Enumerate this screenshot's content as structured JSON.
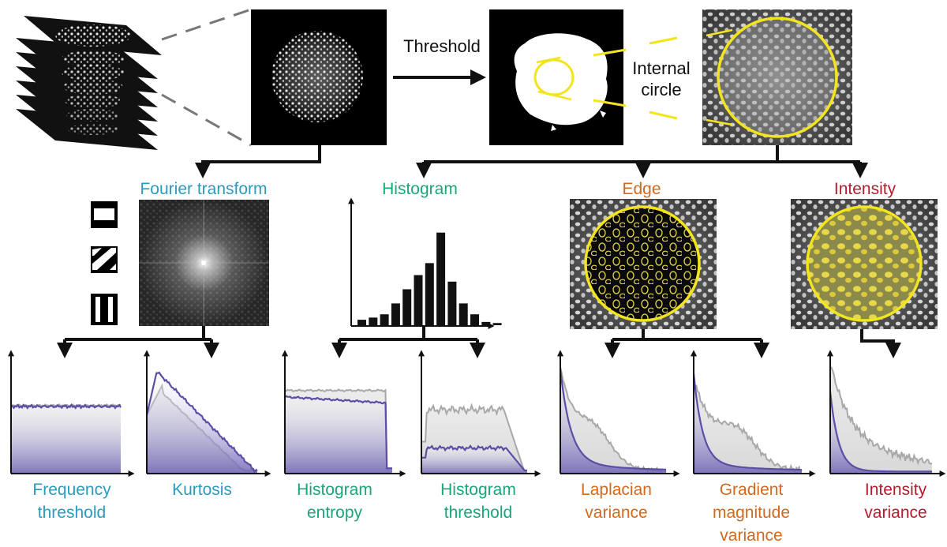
{
  "top": {
    "threshold_label": "Threshold",
    "internal_circle_label": [
      "Internal",
      "circle"
    ]
  },
  "categories": {
    "fourier": {
      "label": "Fourier transform",
      "color": "#2a9bbf"
    },
    "histogram": {
      "label": "Histogram",
      "color": "#1aa57a"
    },
    "edge": {
      "label": "Edge",
      "color": "#d2691e"
    },
    "intensity": {
      "label": "Intensity",
      "color": "#b01e2e"
    }
  },
  "metrics": [
    {
      "id": "frequency-threshold",
      "lines": [
        "Frequency",
        "threshold"
      ],
      "color": "#2a9bbf"
    },
    {
      "id": "kurtosis",
      "lines": [
        "Kurtosis"
      ],
      "color": "#2a9bbf"
    },
    {
      "id": "histogram-entropy",
      "lines": [
        "Histogram",
        "entropy"
      ],
      "color": "#1aa57a"
    },
    {
      "id": "histogram-threshold",
      "lines": [
        "Histogram",
        "threshold"
      ],
      "color": "#1aa57a"
    },
    {
      "id": "laplacian-variance",
      "lines": [
        "Laplacian",
        "variance"
      ],
      "color": "#d2691e"
    },
    {
      "id": "gradient-magnitude-variance",
      "lines": [
        "Gradient",
        "magnitude",
        "variance"
      ],
      "color": "#d2691e"
    },
    {
      "id": "intensity-variance",
      "lines": [
        "Intensity",
        "variance"
      ],
      "color": "#b01e2e"
    }
  ],
  "histogram_bars": [
    0.05,
    0.07,
    0.1,
    0.2,
    0.33,
    0.46,
    0.57,
    0.85,
    0.4,
    0.2,
    0.1,
    0.03,
    0.02
  ],
  "series_colors": {
    "focused": "#5a4ea6",
    "unfocused": "#a8a8a8"
  }
}
